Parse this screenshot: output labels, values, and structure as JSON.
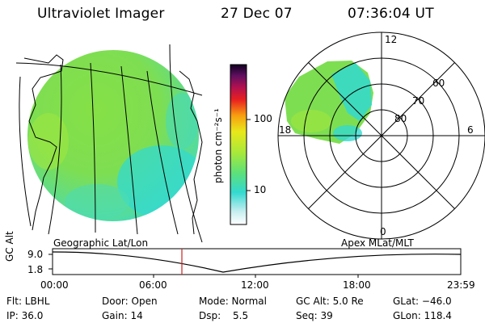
{
  "header": {
    "instrument": "Ultraviolet Imager",
    "date": "27 Dec 07",
    "time": "07:36:04 UT"
  },
  "colorbar": {
    "label": "photon cm⁻²s⁻¹",
    "ticks": [
      "100",
      "10"
    ]
  },
  "polar": {
    "mlt_labels": [
      "12",
      "18",
      "6",
      "0"
    ],
    "lat_labels": [
      "60",
      "70",
      "80"
    ]
  },
  "timeline": {
    "ylabel": "GC Alt",
    "y_ticks": [
      "9.0",
      "1.8"
    ],
    "left_caption": "Geographic Lat/Lon",
    "right_caption": "Apex MLat/MLT",
    "x_ticks": [
      "00:00",
      "06:00",
      "12:00",
      "18:00",
      "23:59"
    ],
    "current_time": "07:36"
  },
  "info": {
    "flt": "Flt: LBHL",
    "ip": "IP: 36.0",
    "door": "Door: Open",
    "gain": "Gain: 14",
    "mode": "Mode: Normal",
    "dsp_label": "Dsp:",
    "dsp_value": "5.5",
    "gc_alt": "GC Alt: 5.0 Re",
    "seq": "Seq: 39",
    "glat": "GLat: −46.0",
    "glon": "GLon: 118.4"
  },
  "colors": {
    "cyan": "#33d9d0",
    "green": "#7fe04a",
    "red_marker": "#cc2222"
  }
}
